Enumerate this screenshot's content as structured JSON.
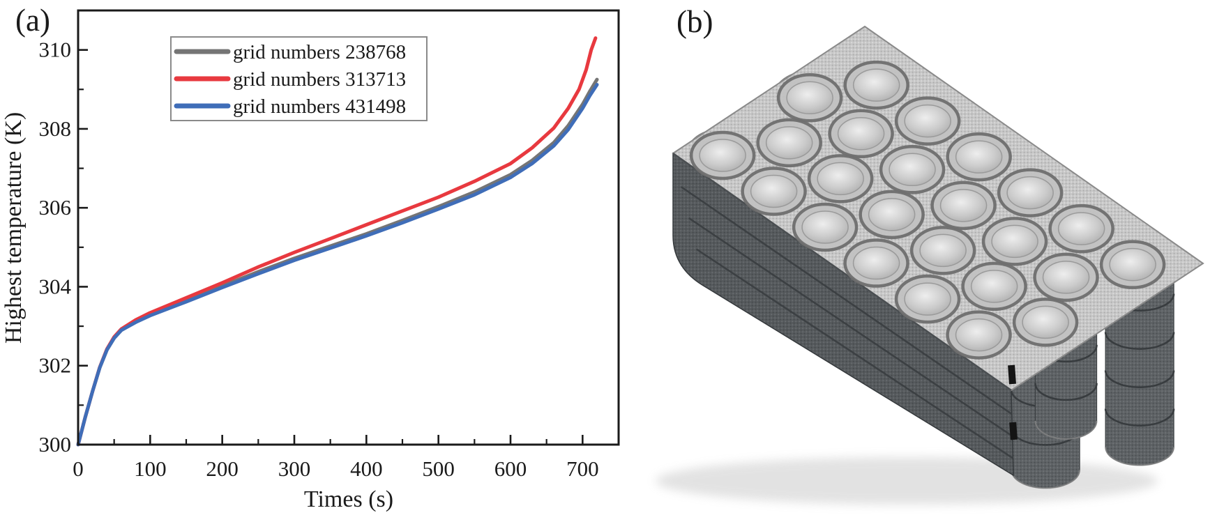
{
  "panel_a": {
    "label": "(a)"
  },
  "panel_b": {
    "label": "(b)",
    "object": "meshed-battery-module",
    "cell_rows": 4,
    "cell_cols": 6,
    "cell_total": 24
  },
  "chart_data": {
    "type": "line",
    "title": "",
    "xlabel": "Times (s)",
    "ylabel": "Highest temperature (K)",
    "xlim": [
      0,
      750
    ],
    "ylim": [
      300,
      311
    ],
    "x_ticks": [
      0,
      100,
      200,
      300,
      400,
      500,
      600,
      700
    ],
    "x_minor_step": 50,
    "y_ticks": [
      300,
      302,
      304,
      306,
      308,
      310
    ],
    "y_minor_step": 1,
    "grid": false,
    "legend_position": "top-left-inside",
    "axis_color": "#1a1a1a",
    "legend_border_color": "#8a8a8a",
    "series": [
      {
        "name": "grid numbers 238768",
        "color": "#757575",
        "points": [
          [
            0,
            300
          ],
          [
            10,
            300.7
          ],
          [
            20,
            301.35
          ],
          [
            30,
            301.95
          ],
          [
            40,
            302.4
          ],
          [
            50,
            302.7
          ],
          [
            60,
            302.9
          ],
          [
            80,
            303.12
          ],
          [
            100,
            303.3
          ],
          [
            150,
            303.66
          ],
          [
            200,
            304.02
          ],
          [
            250,
            304.38
          ],
          [
            300,
            304.72
          ],
          [
            350,
            305.03
          ],
          [
            400,
            305.34
          ],
          [
            450,
            305.68
          ],
          [
            500,
            306.03
          ],
          [
            550,
            306.4
          ],
          [
            600,
            306.84
          ],
          [
            630,
            307.2
          ],
          [
            660,
            307.65
          ],
          [
            680,
            308.08
          ],
          [
            700,
            308.62
          ],
          [
            710,
            308.95
          ],
          [
            720,
            309.25
          ]
        ]
      },
      {
        "name": "grid numbers 313713",
        "color": "#e8393f",
        "points": [
          [
            0,
            300
          ],
          [
            10,
            300.7
          ],
          [
            20,
            301.35
          ],
          [
            30,
            301.96
          ],
          [
            40,
            302.42
          ],
          [
            50,
            302.73
          ],
          [
            60,
            302.93
          ],
          [
            80,
            303.16
          ],
          [
            100,
            303.34
          ],
          [
            150,
            303.72
          ],
          [
            200,
            304.1
          ],
          [
            250,
            304.5
          ],
          [
            300,
            304.87
          ],
          [
            350,
            305.22
          ],
          [
            400,
            305.57
          ],
          [
            450,
            305.92
          ],
          [
            500,
            306.27
          ],
          [
            550,
            306.67
          ],
          [
            600,
            307.12
          ],
          [
            630,
            307.52
          ],
          [
            660,
            308.02
          ],
          [
            680,
            308.52
          ],
          [
            695,
            309.0
          ],
          [
            705,
            309.5
          ],
          [
            712,
            310.0
          ],
          [
            718,
            310.3
          ]
        ]
      },
      {
        "name": "grid numbers 431498",
        "color": "#3f6db8",
        "points": [
          [
            0,
            300
          ],
          [
            10,
            300.7
          ],
          [
            20,
            301.35
          ],
          [
            30,
            301.95
          ],
          [
            40,
            302.4
          ],
          [
            50,
            302.7
          ],
          [
            60,
            302.9
          ],
          [
            80,
            303.1
          ],
          [
            100,
            303.27
          ],
          [
            150,
            303.62
          ],
          [
            200,
            303.98
          ],
          [
            250,
            304.33
          ],
          [
            300,
            304.67
          ],
          [
            350,
            304.98
          ],
          [
            400,
            305.29
          ],
          [
            450,
            305.62
          ],
          [
            500,
            305.97
          ],
          [
            550,
            306.33
          ],
          [
            600,
            306.77
          ],
          [
            630,
            307.12
          ],
          [
            660,
            307.57
          ],
          [
            680,
            307.98
          ],
          [
            700,
            308.52
          ],
          [
            710,
            308.84
          ],
          [
            720,
            309.12
          ]
        ]
      }
    ]
  }
}
